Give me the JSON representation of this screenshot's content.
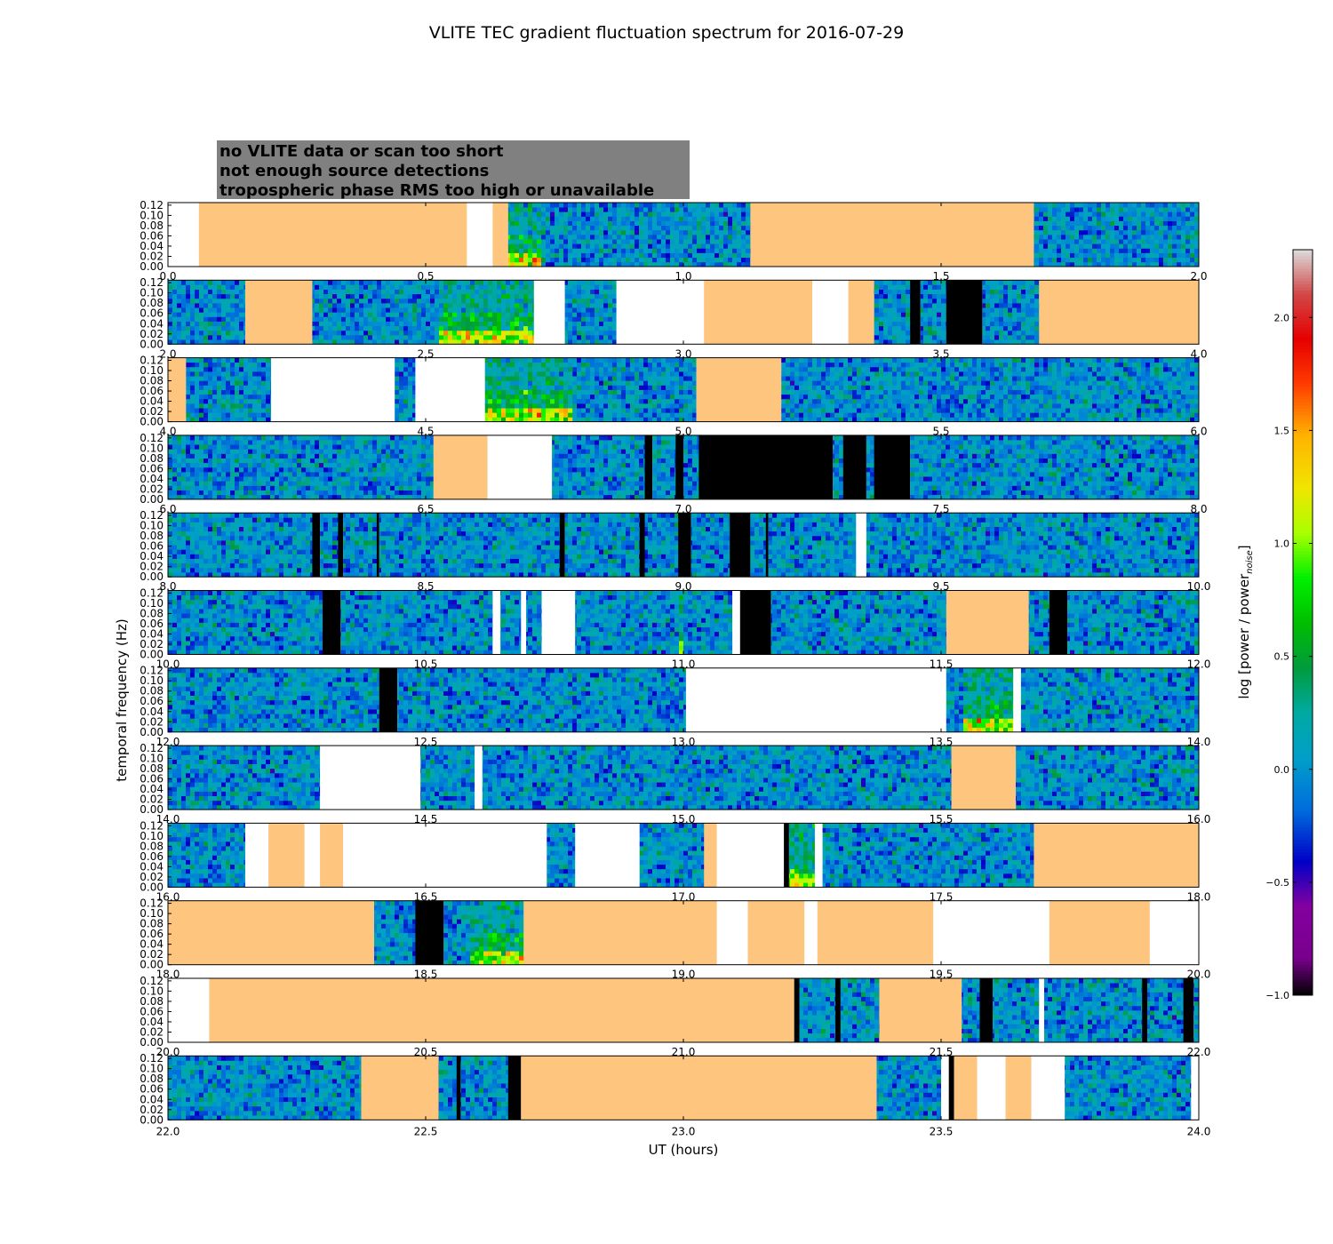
{
  "chart_data": {
    "type": "heatmap",
    "title": "VLITE TEC gradient fluctuation spectrum for 2016-07-29",
    "xlabel": "UT (hours)",
    "ylabel": "temporal frequency (Hz)",
    "colorbar": {
      "label_main": "log [power / power",
      "label_sub": "noise",
      "label_end": "]",
      "range": [
        -1.0,
        2.3
      ],
      "ticks": [
        "2.0",
        "1.5",
        "1.0",
        "0.5",
        "0.0",
        "−0.5",
        "−1.0"
      ],
      "tick_values": [
        2.0,
        1.5,
        1.0,
        0.5,
        0.0,
        -0.5,
        -1.0
      ],
      "colormap": "nipy_spectral"
    },
    "legend": [
      {
        "text": "no VLITE data or scan too short",
        "color": "#ffffff"
      },
      {
        "text": "not enough source detections",
        "color": "#000000"
      },
      {
        "text": "tropospheric phase RMS too high or unavailable",
        "color": "#fec57f"
      }
    ],
    "status_colors": {
      "nodata": "#ffffff",
      "nodetect": "#000000",
      "trop": "#fec57f",
      "legend_box": "#808080"
    },
    "y_ticks": [
      "0.12",
      "0.10",
      "0.08",
      "0.06",
      "0.04",
      "0.02",
      "0.00"
    ],
    "y_tick_values": [
      0.12,
      0.1,
      0.08,
      0.06,
      0.04,
      0.02,
      0.0
    ],
    "ylim": [
      0,
      0.125
    ],
    "panels": [
      {
        "x_ticks": [
          "0.0",
          "0.5",
          "1.0",
          "1.5",
          "2.0"
        ],
        "range": [
          0,
          2
        ],
        "segments": [
          [
            0.0,
            0.06,
            "nodata"
          ],
          [
            0.06,
            0.58,
            "trop"
          ],
          [
            0.58,
            0.63,
            "nodata"
          ],
          [
            0.63,
            0.66,
            "trop"
          ],
          [
            0.66,
            1.13,
            "data",
            [
              0.66,
              0.72,
              "hot"
            ]
          ],
          [
            1.13,
            1.68,
            "trop"
          ],
          [
            1.68,
            2.0,
            "data"
          ]
        ]
      },
      {
        "x_ticks": [
          "2.0",
          "2.5",
          "3.0",
          "3.5",
          "4.0"
        ],
        "range": [
          2,
          4
        ],
        "segments": [
          [
            2.0,
            2.15,
            "data"
          ],
          [
            2.15,
            2.28,
            "trop"
          ],
          [
            2.28,
            2.71,
            "data",
            [
              2.53,
              2.71,
              "hot"
            ]
          ],
          [
            2.71,
            2.77,
            "nodata"
          ],
          [
            2.77,
            2.87,
            "data"
          ],
          [
            2.87,
            3.04,
            "nodata"
          ],
          [
            3.04,
            3.25,
            "trop"
          ],
          [
            3.25,
            3.32,
            "nodata"
          ],
          [
            3.32,
            3.37,
            "trop"
          ],
          [
            3.37,
            3.44,
            "data"
          ],
          [
            3.44,
            3.46,
            "nodetect"
          ],
          [
            3.46,
            3.51,
            "data"
          ],
          [
            3.51,
            3.58,
            "nodetect"
          ],
          [
            3.58,
            3.69,
            "data"
          ],
          [
            3.69,
            4.0,
            "trop"
          ]
        ]
      },
      {
        "x_ticks": [
          "4.0",
          "4.5",
          "5.0",
          "5.5",
          "6.0"
        ],
        "range": [
          4,
          6
        ],
        "segments": [
          [
            4.0,
            4.035,
            "trop"
          ],
          [
            4.035,
            4.2,
            "data"
          ],
          [
            4.2,
            4.44,
            "nodata"
          ],
          [
            4.44,
            4.48,
            "data"
          ],
          [
            4.48,
            4.615,
            "nodata"
          ],
          [
            4.615,
            4.785,
            "data",
            [
              4.615,
              4.785,
              "hot"
            ]
          ],
          [
            4.785,
            5.025,
            "data"
          ],
          [
            5.025,
            5.19,
            "trop"
          ],
          [
            5.19,
            6.0,
            "data"
          ]
        ]
      },
      {
        "x_ticks": [
          "6.0",
          "6.5",
          "7.0",
          "7.5",
          "8.0"
        ],
        "range": [
          6,
          8
        ],
        "segments": [
          [
            6.0,
            6.515,
            "data"
          ],
          [
            6.515,
            6.62,
            "trop"
          ],
          [
            6.62,
            6.745,
            "nodata"
          ],
          [
            6.745,
            6.925,
            "data"
          ],
          [
            6.925,
            6.94,
            "nodetect"
          ],
          [
            6.94,
            6.985,
            "data"
          ],
          [
            6.985,
            7.0,
            "nodetect"
          ],
          [
            7.0,
            7.03,
            "data"
          ],
          [
            7.03,
            7.29,
            "nodetect"
          ],
          [
            7.29,
            7.31,
            "data"
          ],
          [
            7.31,
            7.355,
            "nodetect"
          ],
          [
            7.355,
            7.37,
            "data"
          ],
          [
            7.37,
            7.44,
            "nodetect"
          ],
          [
            7.44,
            8.0,
            "data"
          ]
        ]
      },
      {
        "x_ticks": [
          "8.0",
          "8.5",
          "9.0",
          "9.5",
          "10.0"
        ],
        "range": [
          8,
          10
        ],
        "segments": [
          [
            8.0,
            8.28,
            "data"
          ],
          [
            8.28,
            8.295,
            "nodetect"
          ],
          [
            8.295,
            8.33,
            "data"
          ],
          [
            8.33,
            8.34,
            "nodetect"
          ],
          [
            8.34,
            8.405,
            "data"
          ],
          [
            8.405,
            8.41,
            "nodetect"
          ],
          [
            8.41,
            8.76,
            "data"
          ],
          [
            8.76,
            8.77,
            "nodetect"
          ],
          [
            8.77,
            8.915,
            "data"
          ],
          [
            8.915,
            8.925,
            "nodetect"
          ],
          [
            8.925,
            8.99,
            "data"
          ],
          [
            8.99,
            9.015,
            "nodetect"
          ],
          [
            9.015,
            9.09,
            "data"
          ],
          [
            9.09,
            9.13,
            "nodetect"
          ],
          [
            9.13,
            9.16,
            "data"
          ],
          [
            9.16,
            9.165,
            "nodetect"
          ],
          [
            9.165,
            9.335,
            "data"
          ],
          [
            9.335,
            9.355,
            "nodata"
          ],
          [
            9.355,
            10.0,
            "data"
          ]
        ]
      },
      {
        "x_ticks": [
          "10.0",
          "10.5",
          "11.0",
          "11.5",
          "12.0"
        ],
        "range": [
          10,
          12
        ],
        "segments": [
          [
            10.0,
            10.3,
            "data"
          ],
          [
            10.3,
            10.335,
            "nodetect"
          ],
          [
            10.335,
            10.63,
            "data"
          ],
          [
            10.63,
            10.645,
            "nodata"
          ],
          [
            10.645,
            10.685,
            "data"
          ],
          [
            10.685,
            10.695,
            "nodata"
          ],
          [
            10.695,
            10.725,
            "data"
          ],
          [
            10.725,
            10.79,
            "nodata"
          ],
          [
            10.79,
            11.0,
            "data",
            [
              10.99,
              11.03,
              "hot"
            ]
          ],
          [
            11.0,
            11.095,
            "data"
          ],
          [
            11.095,
            11.11,
            "nodata"
          ],
          [
            11.11,
            11.17,
            "nodetect"
          ],
          [
            11.17,
            11.51,
            "data"
          ],
          [
            11.51,
            11.67,
            "trop"
          ],
          [
            11.67,
            11.71,
            "data"
          ],
          [
            11.71,
            11.745,
            "nodetect"
          ],
          [
            11.745,
            12.0,
            "data"
          ]
        ]
      },
      {
        "x_ticks": [
          "12.0",
          "12.5",
          "13.0",
          "13.5",
          "14.0"
        ],
        "range": [
          12,
          14
        ],
        "segments": [
          [
            12.0,
            12.41,
            "data"
          ],
          [
            12.41,
            12.445,
            "nodetect"
          ],
          [
            12.445,
            13.005,
            "data"
          ],
          [
            13.005,
            13.51,
            "nodata"
          ],
          [
            13.51,
            13.64,
            "data",
            [
              13.54,
              13.64,
              "hot"
            ]
          ],
          [
            13.64,
            13.655,
            "nodata"
          ],
          [
            13.655,
            14.0,
            "data"
          ]
        ]
      },
      {
        "x_ticks": [
          "14.0",
          "14.5",
          "15.0",
          "15.5",
          "16.0"
        ],
        "range": [
          14,
          16
        ],
        "segments": [
          [
            14.0,
            14.295,
            "data"
          ],
          [
            14.295,
            14.49,
            "nodata"
          ],
          [
            14.49,
            14.595,
            "data"
          ],
          [
            14.595,
            14.61,
            "nodata"
          ],
          [
            14.61,
            15.52,
            "data"
          ],
          [
            15.52,
            15.645,
            "trop"
          ],
          [
            15.645,
            16.0,
            "data"
          ]
        ]
      },
      {
        "x_ticks": [
          "16.0",
          "16.5",
          "17.0",
          "17.5",
          "18.0"
        ],
        "range": [
          16,
          18
        ],
        "segments": [
          [
            16.0,
            16.15,
            "data"
          ],
          [
            16.15,
            16.195,
            "nodata"
          ],
          [
            16.195,
            16.265,
            "trop"
          ],
          [
            16.265,
            16.295,
            "nodata"
          ],
          [
            16.295,
            16.34,
            "trop"
          ],
          [
            16.34,
            16.735,
            "nodata"
          ],
          [
            16.735,
            16.79,
            "data"
          ],
          [
            16.79,
            16.915,
            "nodata"
          ],
          [
            16.915,
            17.04,
            "data"
          ],
          [
            17.04,
            17.065,
            "trop"
          ],
          [
            17.065,
            17.195,
            "nodata"
          ],
          [
            17.195,
            17.205,
            "nodetect"
          ],
          [
            17.205,
            17.255,
            "data",
            [
              17.205,
              17.255,
              "hot"
            ]
          ],
          [
            17.255,
            17.27,
            "nodata"
          ],
          [
            17.27,
            17.68,
            "data"
          ],
          [
            17.68,
            18.0,
            "trop"
          ]
        ]
      },
      {
        "x_ticks": [
          "18.0",
          "18.5",
          "19.0",
          "19.5",
          "20.0"
        ],
        "range": [
          18,
          20
        ],
        "segments": [
          [
            18.0,
            18.4,
            "trop"
          ],
          [
            18.4,
            18.48,
            "data"
          ],
          [
            18.48,
            18.535,
            "nodetect"
          ],
          [
            18.535,
            18.69,
            "data",
            [
              18.59,
              18.69,
              "hot"
            ]
          ],
          [
            18.69,
            19.065,
            "trop"
          ],
          [
            19.065,
            19.125,
            "nodata"
          ],
          [
            19.125,
            19.235,
            "trop"
          ],
          [
            19.235,
            19.26,
            "nodata"
          ],
          [
            19.26,
            19.485,
            "trop"
          ],
          [
            19.485,
            19.71,
            "nodata"
          ],
          [
            19.71,
            19.905,
            "trop"
          ],
          [
            19.905,
            20.0,
            "nodata"
          ]
        ]
      },
      {
        "x_ticks": [
          "20.0",
          "20.5",
          "21.0",
          "21.5",
          "22.0"
        ],
        "range": [
          20,
          22
        ],
        "segments": [
          [
            20.0,
            20.08,
            "nodata"
          ],
          [
            20.08,
            21.215,
            "trop"
          ],
          [
            21.215,
            21.225,
            "nodetect"
          ],
          [
            21.225,
            21.295,
            "data"
          ],
          [
            21.295,
            21.305,
            "nodetect"
          ],
          [
            21.305,
            21.38,
            "data"
          ],
          [
            21.38,
            21.54,
            "trop"
          ],
          [
            21.54,
            21.575,
            "data"
          ],
          [
            21.575,
            21.6,
            "nodetect"
          ],
          [
            21.6,
            21.69,
            "data"
          ],
          [
            21.69,
            21.7,
            "nodata"
          ],
          [
            21.7,
            21.89,
            "data"
          ],
          [
            21.89,
            21.9,
            "nodetect"
          ],
          [
            21.9,
            21.97,
            "data"
          ],
          [
            21.97,
            21.99,
            "nodetect"
          ],
          [
            21.99,
            22.0,
            "data"
          ]
        ]
      },
      {
        "x_ticks": [
          "22.0",
          "22.5",
          "23.0",
          "23.5",
          "24.0"
        ],
        "range": [
          22,
          24
        ],
        "segments": [
          [
            22.0,
            22.375,
            "data"
          ],
          [
            22.375,
            22.525,
            "trop"
          ],
          [
            22.525,
            22.56,
            "data"
          ],
          [
            22.56,
            22.568,
            "nodetect"
          ],
          [
            22.568,
            22.66,
            "data"
          ],
          [
            22.66,
            22.685,
            "nodetect"
          ],
          [
            22.685,
            23.375,
            "trop"
          ],
          [
            23.375,
            23.5,
            "data"
          ],
          [
            23.5,
            23.515,
            "nodata"
          ],
          [
            23.515,
            23.525,
            "nodetect"
          ],
          [
            23.525,
            23.57,
            "trop"
          ],
          [
            23.57,
            23.625,
            "nodata"
          ],
          [
            23.625,
            23.675,
            "trop"
          ],
          [
            23.675,
            23.74,
            "nodata"
          ],
          [
            23.74,
            23.985,
            "data"
          ],
          [
            23.985,
            24.0,
            "nodata"
          ]
        ]
      }
    ]
  }
}
